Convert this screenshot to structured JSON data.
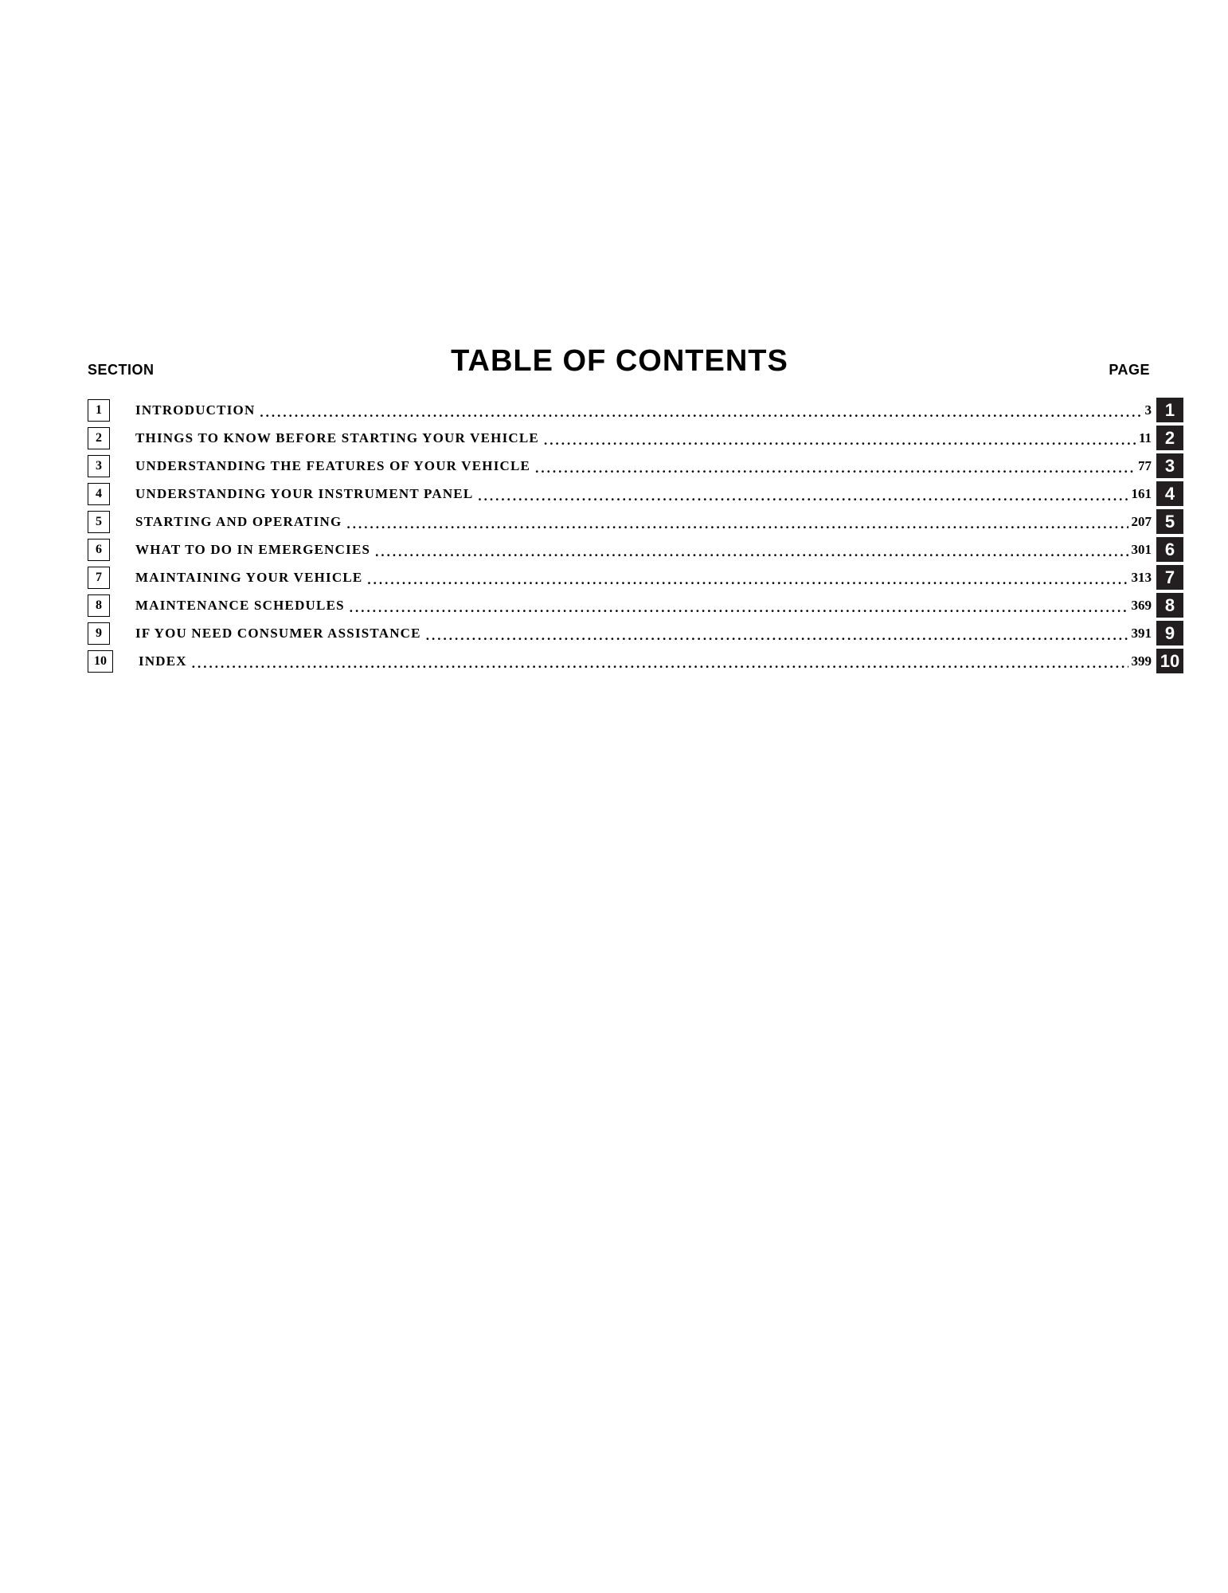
{
  "header": {
    "section_label": "SECTION",
    "title": "TABLE OF CONTENTS",
    "page_label": "PAGE"
  },
  "colors": {
    "background": "#ffffff",
    "text": "#000000",
    "tab_bg": "#231f20",
    "tab_text": "#ffffff",
    "box_border": "#000000"
  },
  "typography": {
    "title_fontsize": 38,
    "label_fontsize": 18,
    "entry_fontsize": 17,
    "box_fontsize": 16,
    "tab_fontsize": 22
  },
  "entries": [
    {
      "num": "1",
      "title": "INTRODUCTION",
      "page": "3",
      "tab": "1"
    },
    {
      "num": "2",
      "title": "THINGS TO KNOW BEFORE STARTING YOUR VEHICLE",
      "page": "11",
      "tab": "2"
    },
    {
      "num": "3",
      "title": "UNDERSTANDING THE FEATURES OF YOUR VEHICLE",
      "page": "77",
      "tab": "3"
    },
    {
      "num": "4",
      "title": "UNDERSTANDING YOUR INSTRUMENT PANEL",
      "page": "161",
      "tab": "4"
    },
    {
      "num": "5",
      "title": "STARTING AND OPERATING",
      "page": "207",
      "tab": "5"
    },
    {
      "num": "6",
      "title": "WHAT TO DO IN EMERGENCIES",
      "page": "301",
      "tab": "6"
    },
    {
      "num": "7",
      "title": "MAINTAINING YOUR VEHICLE",
      "page": "313",
      "tab": "7"
    },
    {
      "num": "8",
      "title": "MAINTENANCE SCHEDULES",
      "page": "369",
      "tab": "8"
    },
    {
      "num": "9",
      "title": "IF YOU NEED CONSUMER ASSISTANCE",
      "page": "391",
      "tab": "9"
    },
    {
      "num": "10",
      "title": "INDEX",
      "page": "399",
      "tab": "10"
    }
  ]
}
